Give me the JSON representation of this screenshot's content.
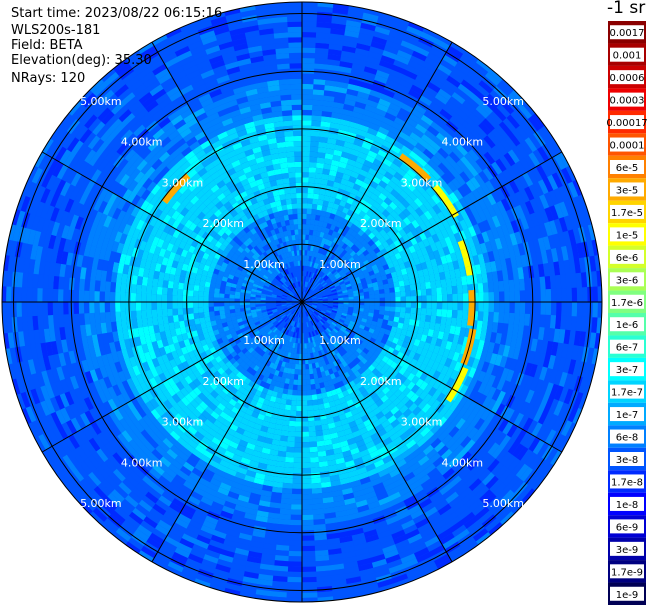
{
  "info": {
    "start_time": "Start time: 2023/08/22 06:15:16",
    "instrument": "WLS200s-181",
    "field": "Field: BETA",
    "elevation": "Elevation(deg): 35.30",
    "nrays": "NRays: 120"
  },
  "colorbar": {
    "title": "-1 sr",
    "labels": [
      "0.0017",
      "0.001",
      "0.0006",
      "0.0003",
      "0.00017",
      "0.0001",
      "6e-5",
      "3e-5",
      "1.7e-5",
      "1e-5",
      "6e-6",
      "3e-6",
      "1.7e-6",
      "1e-6",
      "6e-7",
      "3e-7",
      "1.7e-7",
      "1e-7",
      "6e-8",
      "3e-8",
      "1.7e-8",
      "1e-8",
      "6e-9",
      "3e-9",
      "1.7e-9",
      "1e-9"
    ],
    "colors": [
      "#8a0000",
      "#a80000",
      "#cc0000",
      "#ee0000",
      "#ff2a00",
      "#ff5500",
      "#ff8000",
      "#ffaa00",
      "#ffd400",
      "#ffff00",
      "#d4ff2a",
      "#aaff55",
      "#80ff80",
      "#55ffaa",
      "#2affd4",
      "#00ffff",
      "#00d4ff",
      "#00aaff",
      "#0080ff",
      "#0055ff",
      "#002aff",
      "#0000ff",
      "#0000d4",
      "#0000aa",
      "#000080",
      "#000055"
    ]
  },
  "chart_data": {
    "type": "polar-ppi",
    "rays": 120,
    "range_rings_km": [
      1.0,
      2.0,
      3.0,
      4.0,
      5.0
    ],
    "max_range_km": 5.2,
    "spokes_deg": [
      0,
      30,
      60,
      90,
      120,
      150,
      180,
      210,
      240,
      270,
      300,
      330
    ],
    "ring_labels": [
      "1.00km",
      "2.00km",
      "3.00km",
      "4.00km",
      "5.00km"
    ],
    "field": "BETA",
    "units": "-1 sr",
    "bands": [
      {
        "from_km": 0.0,
        "to_km": 0.6,
        "value": "3e-8"
      },
      {
        "from_km": 0.6,
        "to_km": 1.6,
        "value": "6e-8"
      },
      {
        "from_km": 1.6,
        "to_km": 3.2,
        "value": "1.7e-7"
      },
      {
        "from_km": 3.2,
        "to_km": 3.9,
        "value": "6e-8"
      },
      {
        "from_km": 3.9,
        "to_km": 5.3,
        "value": "3e-8"
      }
    ],
    "hotspots": [
      {
        "az_deg": 40,
        "range_km": 3.05,
        "value": "3e-5"
      },
      {
        "az_deg": 55,
        "range_km": 3.05,
        "value": "1e-5"
      },
      {
        "az_deg": 75,
        "range_km": 2.95,
        "value": "1e-5"
      },
      {
        "az_deg": 92,
        "range_km": 2.95,
        "value": "3e-5"
      },
      {
        "az_deg": 105,
        "range_km": 3.0,
        "value": "3e-5"
      },
      {
        "az_deg": 118,
        "range_km": 3.05,
        "value": "1e-5"
      },
      {
        "az_deg": 312,
        "range_km": 2.95,
        "value": "3e-5"
      }
    ]
  }
}
